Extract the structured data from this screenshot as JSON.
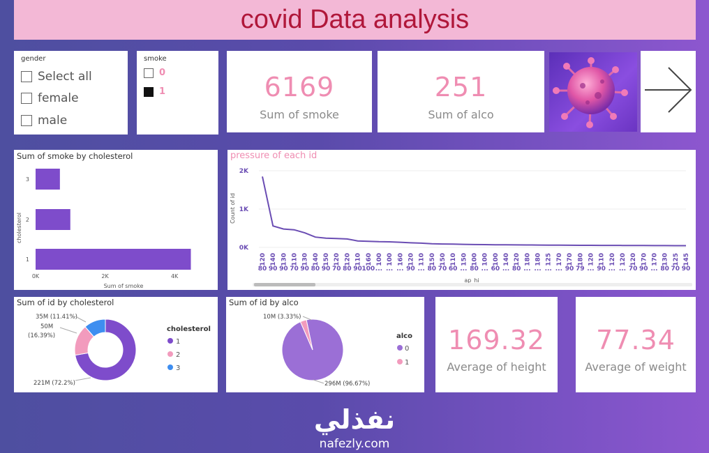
{
  "header": {
    "title": "covid Data analysis"
  },
  "slicers": {
    "gender": {
      "title": "gender",
      "options": [
        "Select all",
        "female",
        "male"
      ]
    },
    "smoke": {
      "title": "smoke",
      "options": [
        "0",
        "1"
      ]
    }
  },
  "kpis": {
    "smoke": {
      "value": "6169",
      "label": "Sum of smoke"
    },
    "alco": {
      "value": "251",
      "label": "Sum of alco"
    },
    "height": {
      "value": "169.32",
      "label": "Average of height"
    },
    "weight": {
      "value": "77.34",
      "label": "Average of weight"
    }
  },
  "colors": {
    "purple": "#7e4ccb",
    "pink": "#f29bbd",
    "blue": "#3e8ef0",
    "line": "#6a4cb3"
  },
  "charts": {
    "smoke_by_chol": {
      "title": "Sum of smoke by cholesterol",
      "ylabel": "cholesterol",
      "xlabel": "Sum of smoke",
      "xticks": [
        "0K",
        "2K",
        "4K"
      ]
    },
    "pressure": {
      "title": "pressure of each id",
      "ylabel": "Count of id",
      "xlabel": "ap_hi",
      "yticks": [
        "2K",
        "1K",
        "0K"
      ]
    },
    "id_by_chol": {
      "title": "Sum of id by cholesterol",
      "legend_title": "cholesterol",
      "labels": [
        "35M (11.41%)",
        "50M (16.39%)",
        "221M (72.2%)"
      ]
    },
    "id_by_alco": {
      "title": "Sum of id by alco",
      "legend_title": "alco",
      "labels": [
        "10M (3.33%)",
        "296M (96.67%)"
      ]
    }
  },
  "chart_data": [
    {
      "type": "bar",
      "title": "Sum of smoke by cholesterol",
      "orientation": "horizontal",
      "categories": [
        "3",
        "2",
        "1"
      ],
      "values": [
        700,
        1000,
        4470
      ],
      "xlim": [
        0,
        4500
      ],
      "xlabel": "Sum of smoke",
      "ylabel": "cholesterol"
    },
    {
      "type": "line",
      "title": "pressure of each id",
      "xlabel": "ap_hi",
      "ylabel": "Count of id",
      "ylim": [
        0,
        2000
      ],
      "x_top": [
        "120",
        "140",
        "130",
        "110",
        "130",
        "140",
        "150",
        "120",
        "120",
        "110",
        "160",
        "100",
        "100",
        "160",
        "120",
        "110",
        "150",
        "150",
        "110",
        "150",
        "100",
        "100",
        "100",
        "140",
        "120",
        "180",
        "180",
        "125",
        "170",
        "170",
        "180",
        "120",
        "110",
        "120",
        "120",
        "120",
        "170",
        "170",
        "130",
        "125",
        "145"
      ],
      "x_bottom": [
        "80",
        "90",
        "90",
        "70",
        "90",
        "80",
        "90",
        "70",
        "80",
        "90",
        "100",
        "...",
        "...",
        "...",
        "90",
        "...",
        "80",
        "70",
        "60",
        "...",
        "80",
        "...",
        "60",
        "...",
        "80",
        "...",
        "...",
        "...",
        "...",
        "90",
        "79",
        "...",
        "90",
        "...",
        "...",
        "70",
        "90",
        "...",
        "80",
        "70",
        "90"
      ],
      "values": [
        1850,
        560,
        480,
        460,
        380,
        270,
        240,
        230,
        220,
        170,
        160,
        150,
        145,
        135,
        120,
        110,
        95,
        90,
        85,
        80,
        75,
        72,
        70,
        68,
        66,
        64,
        62,
        60,
        58,
        56,
        55,
        54,
        53,
        52,
        51,
        50,
        49,
        48,
        47,
        46,
        45
      ]
    },
    {
      "type": "pie",
      "title": "Sum of id by cholesterol",
      "donut": true,
      "categories": [
        "1",
        "2",
        "3"
      ],
      "values": [
        221,
        50,
        35
      ],
      "percent": [
        72.2,
        16.39,
        11.41
      ],
      "colors": [
        "#7e4ccb",
        "#f29bbd",
        "#3e8ef0"
      ]
    },
    {
      "type": "pie",
      "title": "Sum of id by alco",
      "categories": [
        "0",
        "1"
      ],
      "values": [
        296,
        10
      ],
      "percent": [
        96.67,
        3.33
      ],
      "colors": [
        "#9b6fd6",
        "#f29bbd"
      ]
    }
  ],
  "watermark": {
    "arabic": "نفذلي",
    "latin": "nafezly.com"
  }
}
